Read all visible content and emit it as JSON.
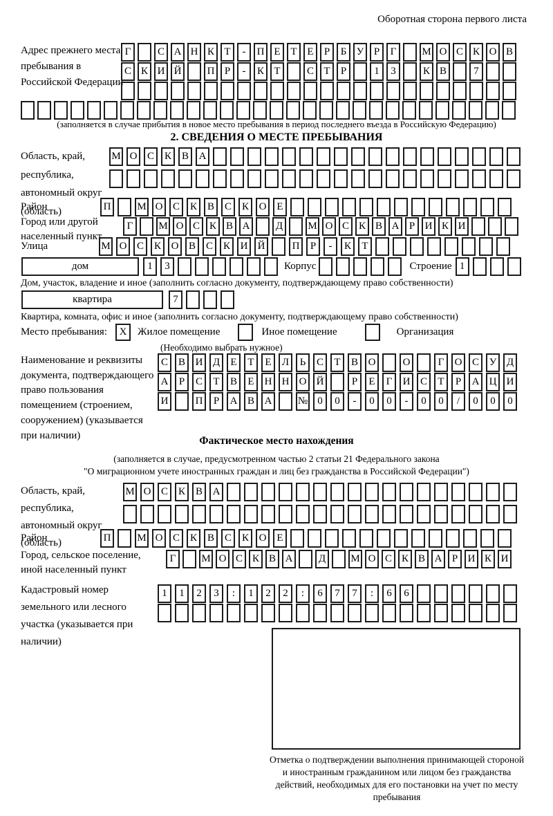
{
  "page": {
    "header_right": "Оборотная сторона первого листа"
  },
  "prev_address": {
    "label": "Адрес прежнего места пребывания в Российской Федерации",
    "row1": {
      "text": "Г САНКТ-ПЕТЕРБУРГ МОСКОВ",
      "count": 24
    },
    "row2": {
      "text": "СКИЙ ПР-КТ СТР 13 КВ 7",
      "count": 24
    },
    "row3": {
      "text": "",
      "count": 24
    },
    "row4": {
      "text": "",
      "count": 30
    },
    "note": "(заполняется в случае прибытия в новое место пребывания в период последнего въезда в Российскую Федерацию)"
  },
  "section2": {
    "title": "2. СВЕДЕНИЯ О МЕСТЕ ПРЕБЫВАНИЯ",
    "region": {
      "label": "Область, край, республика, автономный округ (область)",
      "row1": {
        "text": "МОСКВА",
        "count": 24
      },
      "row2": {
        "text": "",
        "count": 24
      }
    },
    "district": {
      "label": "Район",
      "row": {
        "text": "П МОСКВСКОЕ",
        "count": 24
      }
    },
    "city": {
      "label": "Город или другой населенный пункт",
      "row": {
        "text": "Г МОСКВА Д МОСКВАРИКИ",
        "count": 24
      }
    },
    "street": {
      "label": "Улица",
      "row": {
        "text": "МОСКОВСКИЙ ПР-КТ",
        "count": 24
      }
    },
    "house": {
      "label": "дом",
      "row": {
        "text": "13",
        "count": 8
      },
      "korpus_label": "Корпус",
      "korpus_row": {
        "text": "",
        "count": 5
      },
      "stroenie_label": "Строение",
      "stroenie_row": {
        "text": "1",
        "count": 4
      },
      "note": "Дом, участок, владение и иное (заполнить согласно документу, подтверждающему право собственности)"
    },
    "apartment": {
      "label": "квартира",
      "row": {
        "text": "7",
        "count": 4
      },
      "note": "Квартира, комната, офис и иное (заполнить согласно документу, подтверждающему право собственности)"
    },
    "stay_type": {
      "label": "Место пребывания:",
      "options": [
        {
          "mark": "X",
          "label": "Жилое помещение"
        },
        {
          "mark": "",
          "label": "Иное помещение"
        },
        {
          "mark": "",
          "label": "Организация"
        }
      ],
      "note": "(Необходимо выбрать нужное)"
    },
    "doc": {
      "label": "Наименование и реквизиты документа, подтверждающего право пользования помещением (строением, сооружением) (указывается при наличии)",
      "row1": {
        "text": "СВИДЕТЕЛЬСТВО О ГОСУД",
        "count": 21
      },
      "row2": {
        "text": "АРСТВЕННОЙ РЕГИСТРАЦИ",
        "count": 21
      },
      "row3": {
        "text": "И ПРАВА №00-00-00/000",
        "count": 21
      }
    }
  },
  "actual": {
    "title": "Фактическое место нахождения",
    "note1": "(заполняется в случае, предусмотренном частью 2 статьи 21 Федерального закона",
    "note2": "\"О миграционном учете иностранных граждан и лиц без гражданства в Российской Федерации\")",
    "region": {
      "label": "Область, край, республика, автономный округ (область)",
      "row1": {
        "text": "МОСКВА",
        "count": 23
      },
      "row2": {
        "text": "",
        "count": 23
      }
    },
    "district": {
      "label": "Район",
      "row": {
        "text": "П МОСКВСКОЕ",
        "count": 24
      }
    },
    "city": {
      "label": "Город, сельское поселение, иной населенный пункт",
      "row": {
        "text": "Г МОСКВА Д МОСКВАРИКИ",
        "count": 21
      }
    },
    "cadastral": {
      "label": "Кадастровый номер земельного или лесного участка (указывается при наличии)",
      "row1": {
        "text": "1123:122:677:66",
        "count": 21
      },
      "row2": {
        "text": "",
        "count": 21
      }
    }
  },
  "confirmation": {
    "note": "Отметка о подтверждении выполнения принимающей стороной и иностранным гражданином или лицом без гражданства действий, необходимых для его постановки на учет по месту пребывания"
  }
}
